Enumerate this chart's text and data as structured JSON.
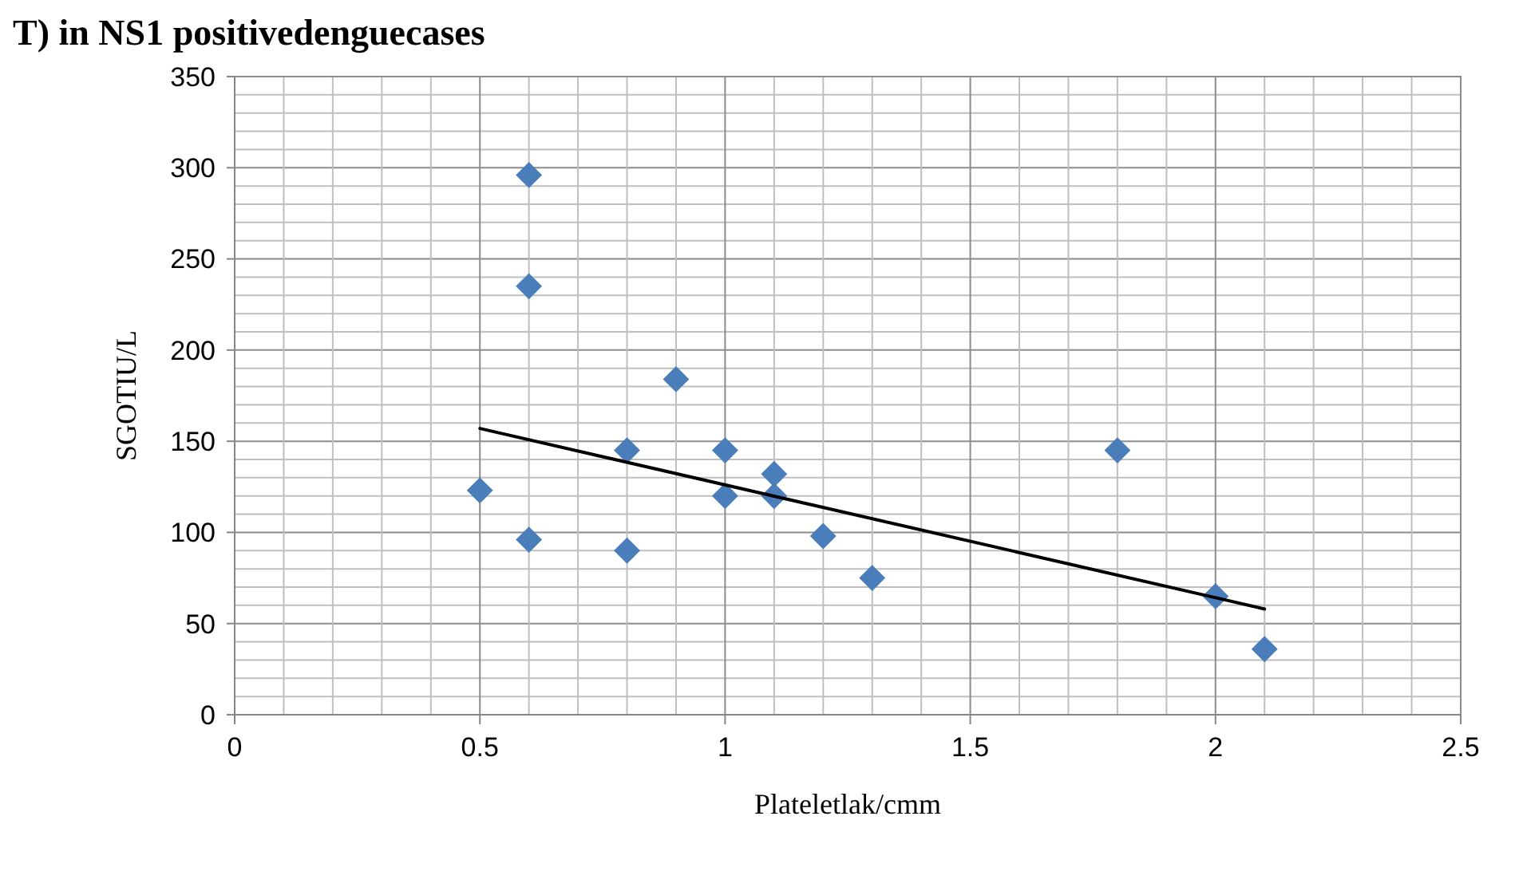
{
  "chart_data": {
    "type": "scatter",
    "title": "T) in NS1 positivedenguecases",
    "xlabel": "Plateletlak/cmm",
    "ylabel": "SGOTIU/L",
    "xlim": [
      0,
      2.5
    ],
    "ylim": [
      0,
      350
    ],
    "xticks": [
      0,
      {
        "value": 0.1,
        "label": null
      },
      {
        "value": 0.2,
        "label": null
      },
      {
        "value": 0.3,
        "label": null
      },
      {
        "value": 0.4,
        "label": null
      },
      0.5,
      {
        "value": 0.6,
        "label": null
      },
      {
        "value": 0.7,
        "label": null
      },
      {
        "value": 0.8,
        "label": null
      },
      {
        "value": 0.9,
        "label": null
      },
      1,
      {
        "value": 1.1,
        "label": null
      },
      {
        "value": 1.2,
        "label": null
      },
      {
        "value": 1.3,
        "label": null
      },
      {
        "value": 1.4,
        "label": null
      },
      1.5,
      {
        "value": 1.6,
        "label": null
      },
      {
        "value": 1.7,
        "label": null
      },
      {
        "value": 1.8,
        "label": null
      },
      {
        "value": 1.9,
        "label": null
      },
      2,
      {
        "value": 2.1,
        "label": null
      },
      {
        "value": 2.2,
        "label": null
      },
      {
        "value": 2.3,
        "label": null
      },
      {
        "value": 2.4,
        "label": null
      },
      2.5
    ],
    "yticks": [
      0,
      {
        "value": 10,
        "label": null
      },
      {
        "value": 20,
        "label": null
      },
      {
        "value": 30,
        "label": null
      },
      {
        "value": 40,
        "label": null
      },
      50,
      {
        "value": 60,
        "label": null
      },
      {
        "value": 70,
        "label": null
      },
      {
        "value": 80,
        "label": null
      },
      {
        "value": 90,
        "label": null
      },
      100,
      {
        "value": 110,
        "label": null
      },
      {
        "value": 120,
        "label": null
      },
      {
        "value": 130,
        "label": null
      },
      {
        "value": 140,
        "label": null
      },
      150,
      {
        "value": 160,
        "label": null
      },
      {
        "value": 170,
        "label": null
      },
      {
        "value": 180,
        "label": null
      },
      {
        "value": 190,
        "label": null
      },
      200,
      {
        "value": 210,
        "label": null
      },
      {
        "value": 220,
        "label": null
      },
      {
        "value": 230,
        "label": null
      },
      {
        "value": 240,
        "label": null
      },
      250,
      {
        "value": 260,
        "label": null
      },
      {
        "value": 270,
        "label": null
      },
      {
        "value": 280,
        "label": null
      },
      {
        "value": 290,
        "label": null
      },
      300,
      {
        "value": 310,
        "label": null
      },
      {
        "value": 320,
        "label": null
      },
      {
        "value": 330,
        "label": null
      },
      {
        "value": 340,
        "label": null
      },
      350
    ],
    "grid": true,
    "series": [
      {
        "color": "#4a7ebb",
        "marker": "diamond",
        "x": [
          0.5,
          0.6,
          0.6,
          0.6,
          0.8,
          0.8,
          0.9,
          1.0,
          1.0,
          1.1,
          1.1,
          1.2,
          1.3,
          1.8,
          2.0,
          2.1
        ],
        "values": [
          123,
          296,
          235,
          96,
          145,
          90,
          184,
          145,
          120,
          132,
          120,
          98,
          75,
          145,
          65,
          36
        ]
      },
      {
        "type": "line",
        "color": "#000000",
        "marker": "none",
        "line_style": "solid",
        "x": [
          0.5,
          2.1
        ],
        "values": [
          157,
          58
        ]
      }
    ]
  }
}
